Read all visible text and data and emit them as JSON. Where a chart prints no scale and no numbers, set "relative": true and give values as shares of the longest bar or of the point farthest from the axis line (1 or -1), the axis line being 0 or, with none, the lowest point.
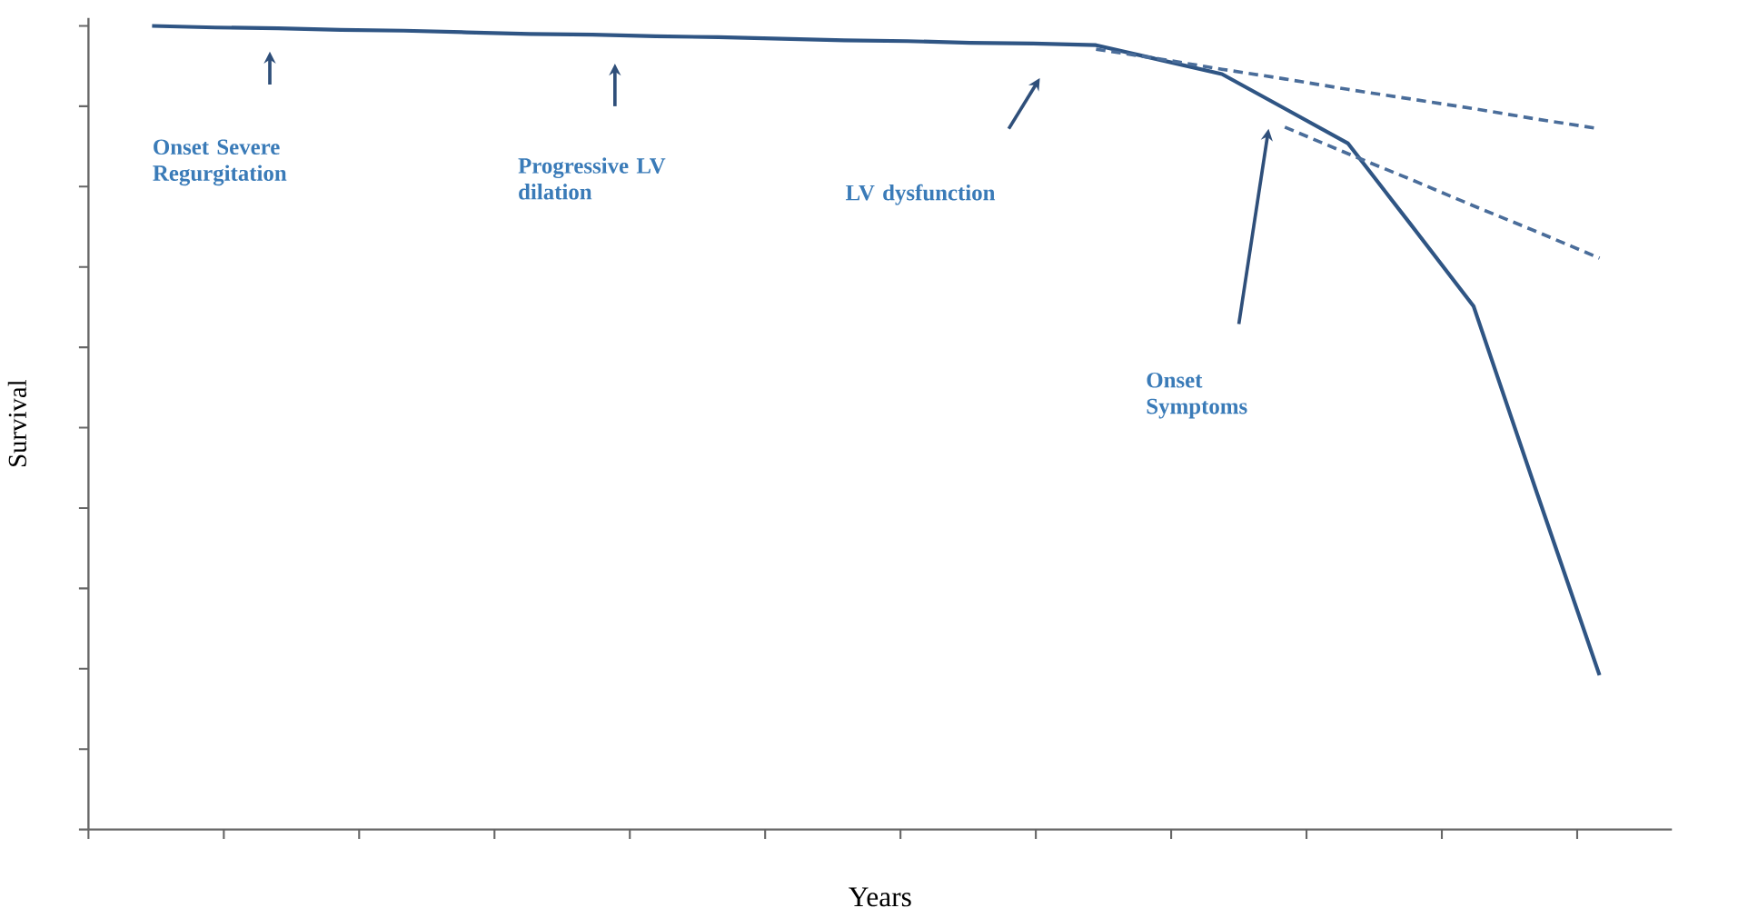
{
  "chart_data": {
    "type": "line",
    "relative": true,
    "xlabel": "Years",
    "ylabel": "Survival",
    "categories": [
      null,
      null,
      null,
      null,
      null,
      null,
      null,
      null,
      null,
      null,
      null,
      null,
      null,
      null,
      null,
      null,
      null,
      null,
      null,
      null,
      null,
      null,
      null,
      null
    ],
    "series": [
      {
        "color": "#2f5584",
        "line_style": "solid",
        "values": [
          1.0,
          0.998,
          0.997,
          0.995,
          0.994,
          0.992,
          0.99,
          0.989,
          0.987,
          0.986,
          0.984,
          0.982,
          0.981,
          0.979,
          0.978,
          0.976,
          0.958,
          0.94,
          0.897,
          0.854,
          0.753,
          0.651,
          0.42,
          0.192
        ]
      },
      {
        "color": "#4a6d9a",
        "line_style": "dashed",
        "values": [
          null,
          null,
          null,
          null,
          null,
          null,
          null,
          null,
          null,
          null,
          null,
          null,
          null,
          null,
          null,
          0.971,
          0.959,
          0.946,
          0.934,
          0.921,
          0.909,
          0.897,
          0.884,
          0.872
        ]
      },
      {
        "color": "#4a6d9a",
        "line_style": "dashed",
        "values": [
          null,
          null,
          null,
          null,
          null,
          null,
          null,
          null,
          null,
          null,
          null,
          null,
          null,
          null,
          null,
          null,
          null,
          null,
          0.874,
          0.841,
          0.809,
          0.776,
          0.744,
          0.711
        ]
      }
    ],
    "annotations": [
      "Onset Severe Regurgitation",
      "Progressive LV dilation",
      "LV dysfunction",
      "Onset Symptoms"
    ]
  }
}
